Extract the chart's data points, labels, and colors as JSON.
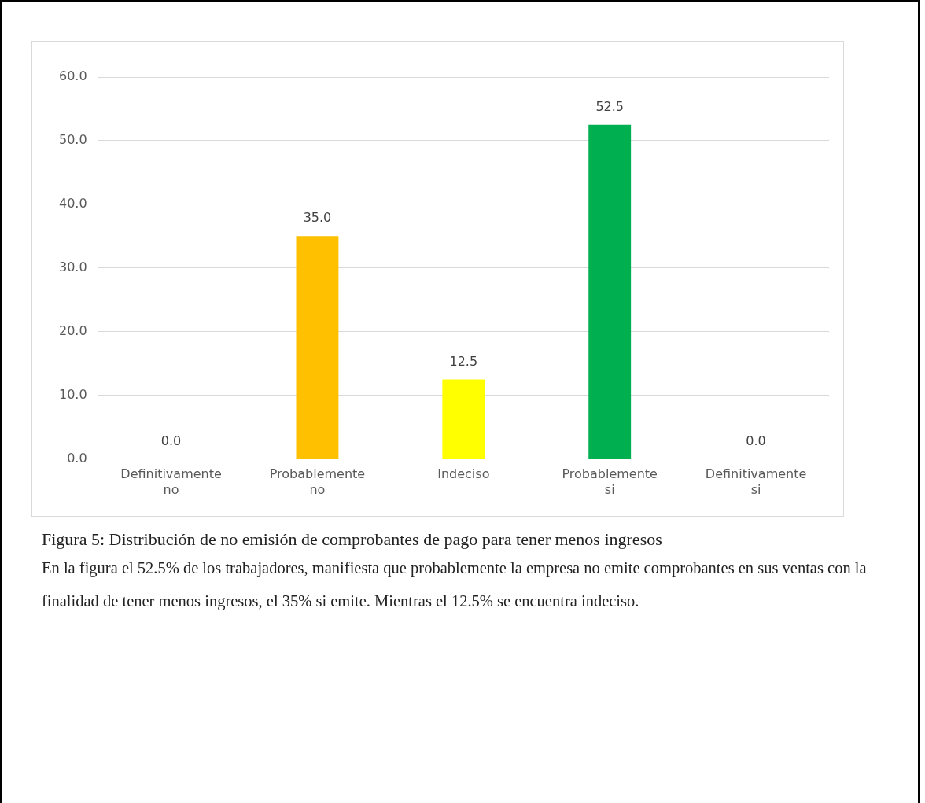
{
  "chart_data": {
    "type": "bar",
    "title": "Figura 5: Distribución de no emisión de comprobantes de pago para tener menos ingresos",
    "categories": [
      "Definitivamente no",
      "Probablemente no",
      "Indeciso",
      "Probablemente si",
      "Definitivamente si"
    ],
    "values": [
      0,
      35,
      12.5,
      52.5,
      0
    ],
    "colors": [
      "#ffc000",
      "#ffc000",
      "#ffff00",
      "#00b050",
      "#00b050"
    ],
    "value_labels": [
      "0.0",
      "35.0",
      "12.5",
      "52.5",
      "0.0"
    ],
    "ylim": [
      0,
      60
    ],
    "yticks": [
      {
        "value": 0,
        "label": "0.0"
      },
      {
        "value": 10,
        "label": "10.0"
      },
      {
        "value": 20,
        "label": "20.0"
      },
      {
        "value": 30,
        "label": "30.0"
      },
      {
        "value": 40,
        "label": "40.0"
      },
      {
        "value": 50,
        "label": "50.0"
      },
      {
        "value": 60,
        "label": "60.0"
      }
    ],
    "grid": "y",
    "annotations": [
      "En la figura el 52.5% de los trabajadores, manifiesta que probablemente la empresa no emite comprobantes en sus ventas con la finalidad de tener menos ingresos, el 35% si emite. Mientras el 12.5% se encuentra indeciso."
    ]
  }
}
